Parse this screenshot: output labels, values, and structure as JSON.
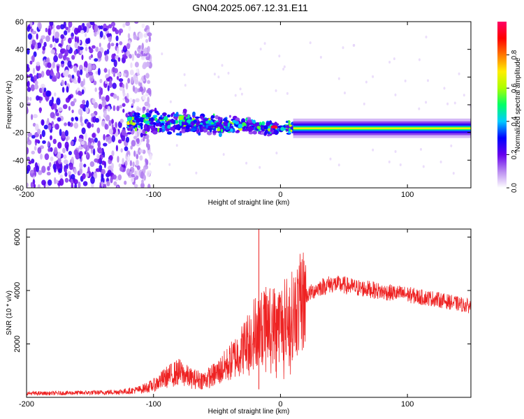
{
  "title": "GN04.2025.067.12.31.E11",
  "chart_data": [
    {
      "type": "heatmap",
      "xlabel": "Height of straight line (km)",
      "ylabel": "Frequency (Hz)",
      "xlim": [
        -200,
        150
      ],
      "ylim": [
        -60,
        60
      ],
      "xticks": [
        "-200",
        "-100",
        "0",
        "100"
      ],
      "yticks": [
        "60",
        "40",
        "20",
        "0",
        "-20",
        "-40",
        "-60"
      ],
      "colorbar": {
        "label": "Normalized spectral amplitude",
        "range": [
          0.0,
          1.0
        ],
        "ticks": [
          "0.0",
          "0.2",
          "0.4",
          "0.6",
          "0.8"
        ],
        "colors": [
          "#ffffff",
          "#b88af0",
          "#6600ee",
          "#0000ff",
          "#00ccff",
          "#00ff66",
          "#aaff00",
          "#ffee00",
          "#ff7700",
          "#ff0000",
          "#ff0066"
        ]
      },
      "features": [
        {
          "label": "noise",
          "x_range": [
            -200,
            -110
          ],
          "freq_range": [
            -60,
            60
          ],
          "amplitude": 0.15
        },
        {
          "label": "scattered band",
          "x_range": [
            -120,
            10
          ],
          "freq_center": [
            -12,
            -17
          ],
          "amplitude": 0.35
        },
        {
          "label": "narrow line",
          "x_range": [
            10,
            150
          ],
          "freq": -17,
          "amplitude": 0.7
        },
        {
          "label": "peak",
          "x": -5,
          "freq": -16,
          "amplitude": 0.95
        }
      ]
    },
    {
      "type": "line",
      "xlabel": "Height of straight line (km)",
      "ylabel": "SNR (10 * v/v)",
      "xlim": [
        -200,
        150
      ],
      "ylim": [
        0,
        6300
      ],
      "xticks": [
        "-200",
        "-100",
        "0",
        "100"
      ],
      "yticks": [
        "6000",
        "4000",
        "2000"
      ],
      "color": "#ee2222",
      "series": [
        {
          "x": [
            -200,
            -180,
            -160,
            -140,
            -120,
            -110,
            -100,
            -90,
            -80,
            -70,
            -60,
            -50,
            -40,
            -30,
            -20,
            -10,
            0,
            10,
            20,
            30,
            40,
            50,
            60,
            70,
            80,
            90,
            100,
            110,
            120,
            130,
            140,
            150
          ],
          "y": [
            150,
            150,
            170,
            180,
            230,
            300,
            450,
            750,
            950,
            700,
            650,
            900,
            1300,
            1800,
            2500,
            2700,
            2800,
            3100,
            3800,
            4100,
            4250,
            4200,
            4100,
            4050,
            3950,
            3900,
            3850,
            3750,
            3700,
            3600,
            3500,
            3400
          ]
        }
      ]
    }
  ]
}
